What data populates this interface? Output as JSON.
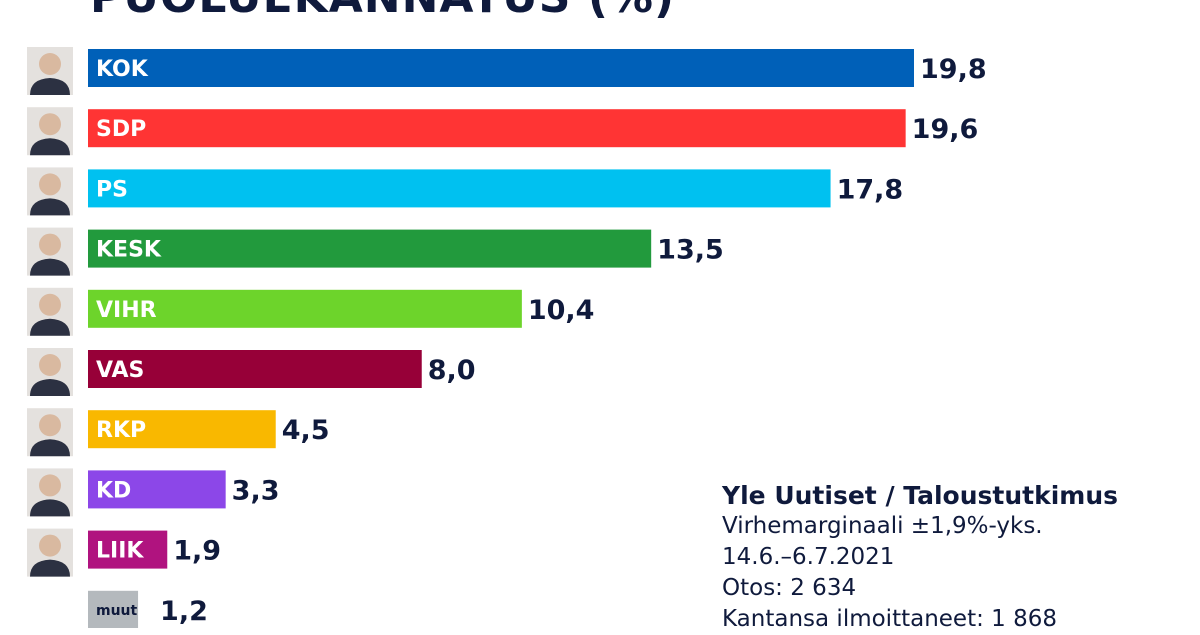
{
  "header": {
    "title": "PUOLUEKANNATUS (%)"
  },
  "chart_data": {
    "type": "bar",
    "orientation": "horizontal",
    "title": "PUOLUEKANNATUS (%)",
    "categories": [
      "KOK",
      "SDP",
      "PS",
      "KESK",
      "VIHR",
      "VAS",
      "RKP",
      "KD",
      "LIIK",
      "muut"
    ],
    "values": [
      19.8,
      19.6,
      17.8,
      13.5,
      10.4,
      8.0,
      4.5,
      3.3,
      1.9,
      1.2
    ],
    "value_labels": [
      "19,8",
      "19,6",
      "17,8",
      "13,5",
      "10,4",
      "8,0",
      "4,5",
      "3,3",
      "1,9",
      "1,2"
    ],
    "colors": [
      "#0060b8",
      "#ff3434",
      "#00c1f0",
      "#229a3d",
      "#6dd42b",
      "#970038",
      "#f9b800",
      "#8c47e8",
      "#b0137f",
      "#b4b9bd"
    ],
    "has_portrait": [
      true,
      true,
      true,
      true,
      true,
      true,
      true,
      true,
      true,
      false
    ],
    "xlim": [
      0,
      19.8
    ],
    "grid": false,
    "legend": "none"
  },
  "source": {
    "title": "Yle Uutiset / Taloustutkimus",
    "margin": "Virhemarginaali ±1,9%-yks.",
    "dates": "14.6.–6.7.2021",
    "sample": "Otos: 2 634",
    "respondents": "Kantansa ilmoittaneet: 1 868"
  }
}
